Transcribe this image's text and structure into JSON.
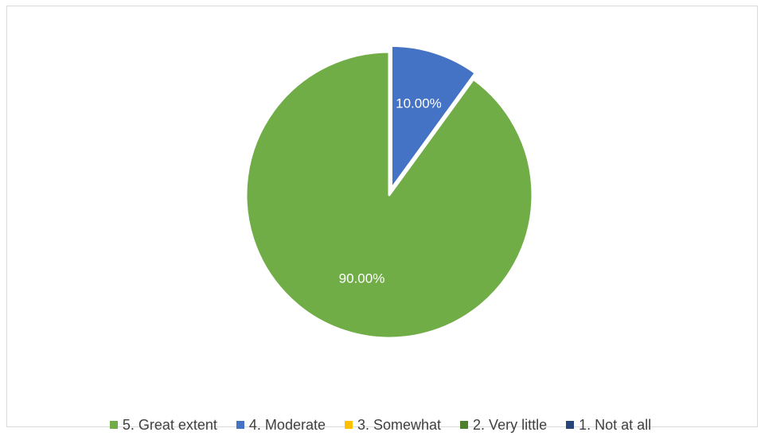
{
  "chart_data": {
    "type": "pie",
    "categories": [
      "5. Great extent",
      "4. Moderate",
      "3. Somewhat",
      "2. Very little",
      "1. Not at all"
    ],
    "values": [
      90.0,
      10.0,
      0.0,
      0.0,
      0.0
    ],
    "data_labels": [
      "90.00%",
      "10.00%",
      "",
      "",
      ""
    ],
    "colors": [
      "#70ad47",
      "#4472c4",
      "#ffc000",
      "#4e7f2c",
      "#264478"
    ],
    "legend_position": "bottom",
    "exploded_slice": "4. Moderate"
  }
}
